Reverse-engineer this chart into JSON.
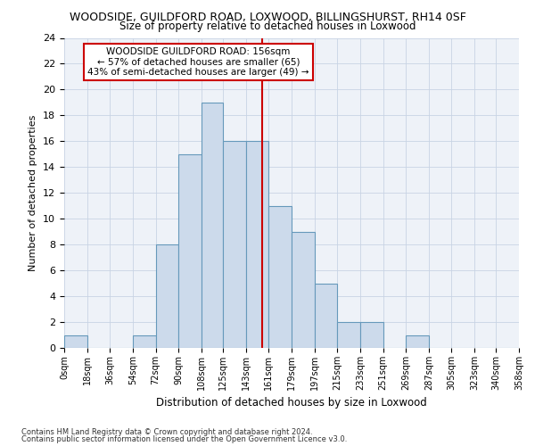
{
  "title_line1": "WOODSIDE, GUILDFORD ROAD, LOXWOOD, BILLINGSHURST, RH14 0SF",
  "title_line2": "Size of property relative to detached houses in Loxwood",
  "xlabel": "Distribution of detached houses by size in Loxwood",
  "ylabel": "Number of detached properties",
  "footnote1": "Contains HM Land Registry data © Crown copyright and database right 2024.",
  "footnote2": "Contains public sector information licensed under the Open Government Licence v3.0.",
  "bin_edges": [
    0,
    18,
    36,
    54,
    72,
    90,
    108,
    125,
    143,
    161,
    179,
    197,
    215,
    233,
    251,
    269,
    287,
    305,
    323,
    340,
    358
  ],
  "bin_labels": [
    "0sqm",
    "18sqm",
    "36sqm",
    "54sqm",
    "72sqm",
    "90sqm",
    "108sqm",
    "125sqm",
    "143sqm",
    "161sqm",
    "179sqm",
    "197sqm",
    "215sqm",
    "233sqm",
    "251sqm",
    "269sqm",
    "287sqm",
    "305sqm",
    "323sqm",
    "340sqm",
    "358sqm"
  ],
  "bar_heights": [
    1,
    0,
    0,
    1,
    8,
    15,
    19,
    16,
    16,
    11,
    9,
    5,
    2,
    2,
    0,
    1,
    0,
    0,
    0,
    0
  ],
  "bar_color": "#ccdaeb",
  "bar_edge_color": "#6699bb",
  "vline_x": 156,
  "vline_color": "#cc0000",
  "ylim": [
    0,
    24
  ],
  "yticks": [
    0,
    2,
    4,
    6,
    8,
    10,
    12,
    14,
    16,
    18,
    20,
    22,
    24
  ],
  "annotation_title": "WOODSIDE GUILDFORD ROAD: 156sqm",
  "annotation_line1": "← 57% of detached houses are smaller (65)",
  "annotation_line2": "43% of semi-detached houses are larger (49) →",
  "annotation_box_color": "#ffffff",
  "annotation_box_edge": "#cc0000",
  "grid_color": "#c8d4e4",
  "bg_color": "#eef2f8"
}
